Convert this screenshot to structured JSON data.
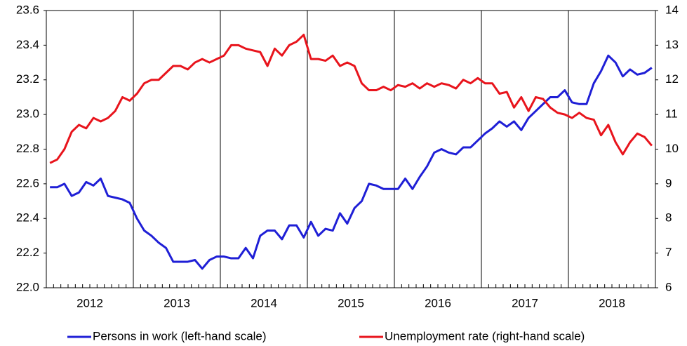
{
  "chart_data": {
    "type": "line",
    "categories": [
      null,
      null,
      null,
      null,
      null,
      null,
      "2012",
      null,
      null,
      null,
      null,
      null,
      null,
      null,
      null,
      null,
      null,
      null,
      "2013",
      null,
      null,
      null,
      null,
      null,
      null,
      null,
      null,
      null,
      null,
      null,
      "2014",
      null,
      null,
      null,
      null,
      null,
      null,
      null,
      null,
      null,
      null,
      null,
      "2015",
      null,
      null,
      null,
      null,
      null,
      null,
      null,
      null,
      null,
      null,
      null,
      "2016",
      null,
      null,
      null,
      null,
      null,
      null,
      null,
      null,
      null,
      null,
      null,
      "2017",
      null,
      null,
      null,
      null,
      null,
      null,
      null,
      null,
      null,
      null,
      null,
      "2018",
      null,
      null,
      null,
      null,
      null
    ],
    "series": [
      {
        "name": "Persons in work (left-hand scale)",
        "color": "#1f1fd6",
        "values": [
          22.58,
          22.58,
          22.6,
          22.53,
          22.55,
          22.61,
          22.59,
          22.63,
          22.53,
          22.52,
          22.51,
          22.49,
          22.4,
          22.33,
          22.3,
          22.26,
          22.23,
          22.15,
          22.15,
          22.15,
          22.16,
          22.11,
          22.16,
          22.18,
          22.18,
          22.17,
          22.17,
          22.23,
          22.17,
          22.3,
          22.33,
          22.33,
          22.28,
          22.36,
          22.36,
          22.29,
          22.38,
          22.3,
          22.34,
          22.33,
          22.43,
          22.37,
          22.46,
          22.5,
          22.6,
          22.59,
          22.57,
          22.57,
          22.57,
          22.63,
          22.57,
          22.64,
          22.7,
          22.78,
          22.8,
          22.78,
          22.77,
          22.81,
          22.81,
          22.85,
          22.89,
          22.92,
          22.96,
          22.93,
          22.96,
          22.91,
          22.98,
          23.02,
          23.06,
          23.1,
          23.1,
          23.14,
          23.07,
          23.06,
          23.06,
          23.18,
          23.25,
          23.34,
          23.3,
          23.22,
          23.26,
          23.23,
          23.24,
          23.27
        ]
      },
      {
        "name": "Unemployment rate (right-hand scale)",
        "color": "#e8141c",
        "axis": "y2",
        "values": [
          9.6,
          9.7,
          10.0,
          10.5,
          10.7,
          10.6,
          10.9,
          10.8,
          10.9,
          11.1,
          11.5,
          11.4,
          11.6,
          11.9,
          12.0,
          12.0,
          12.2,
          12.4,
          12.4,
          12.3,
          12.5,
          12.6,
          12.5,
          12.6,
          12.7,
          13.0,
          13.0,
          12.9,
          12.85,
          12.8,
          12.4,
          12.9,
          12.7,
          13.0,
          13.1,
          13.3,
          12.6,
          12.6,
          12.55,
          12.7,
          12.4,
          12.5,
          12.4,
          11.9,
          11.7,
          11.7,
          11.8,
          11.7,
          11.85,
          11.8,
          11.9,
          11.75,
          11.9,
          11.8,
          11.9,
          11.85,
          11.75,
          12.0,
          11.9,
          12.05,
          11.9,
          11.9,
          11.6,
          11.65,
          11.2,
          11.5,
          11.1,
          11.5,
          11.45,
          11.2,
          11.05,
          11.0,
          10.9,
          11.05,
          10.9,
          10.85,
          10.4,
          10.7,
          10.2,
          9.85,
          10.2,
          10.45,
          10.35,
          10.1
        ]
      }
    ],
    "ylim": [
      22.0,
      23.6
    ],
    "yticks": [
      {
        "value": 22.0,
        "label": "22.0"
      },
      22.2,
      22.4,
      22.6,
      22.8,
      {
        "value": 23.0,
        "label": "23.0"
      },
      23.2,
      23.4,
      23.6
    ],
    "y2lim": [
      6,
      14
    ],
    "y2ticks": [
      6,
      7,
      8,
      9,
      10,
      11,
      12,
      13,
      14
    ],
    "legend": "bottom"
  }
}
